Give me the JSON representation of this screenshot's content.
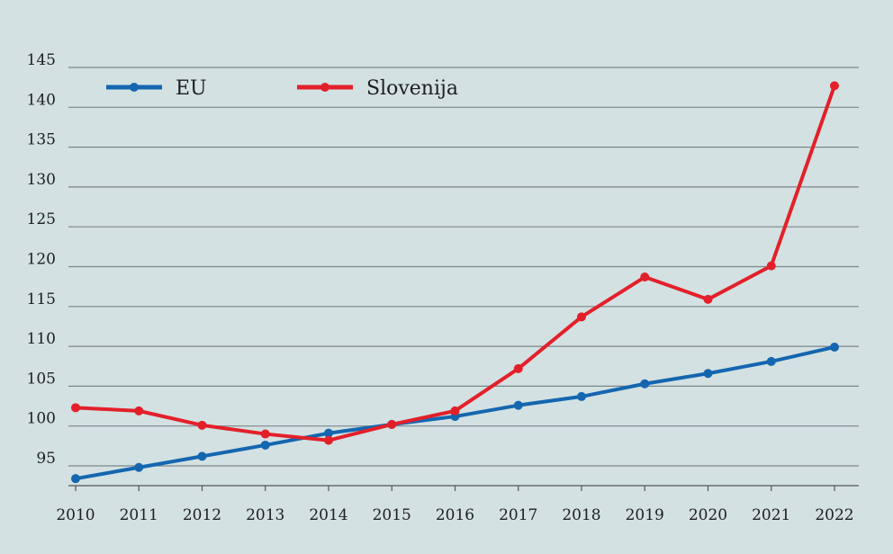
{
  "chart_data": {
    "type": "line",
    "title": "",
    "xlabel": "",
    "ylabel": "",
    "x": [
      "2010",
      "2011",
      "2012",
      "2013",
      "2014",
      "2015",
      "2016",
      "2017",
      "2018",
      "2019",
      "2020",
      "2021",
      "2022"
    ],
    "yticks": [
      "95",
      "100",
      "105",
      "110",
      "115",
      "120",
      "125",
      "130",
      "135",
      "140",
      "145"
    ],
    "ylim": [
      92,
      145
    ],
    "grid": true,
    "legend_position": "top-left",
    "series": [
      {
        "name": "EU",
        "color": "#1466b0",
        "values": [
          93.4,
          94.8,
          96.2,
          97.6,
          99.1,
          100.2,
          101.2,
          102.6,
          103.7,
          105.3,
          106.6,
          108.1,
          109.9
        ]
      },
      {
        "name": "Slovenija",
        "color": "#e3202a",
        "values": [
          102.3,
          101.9,
          100.1,
          99.0,
          98.2,
          100.2,
          101.9,
          107.2,
          113.7,
          118.7,
          115.9,
          120.1,
          142.7
        ]
      }
    ]
  }
}
